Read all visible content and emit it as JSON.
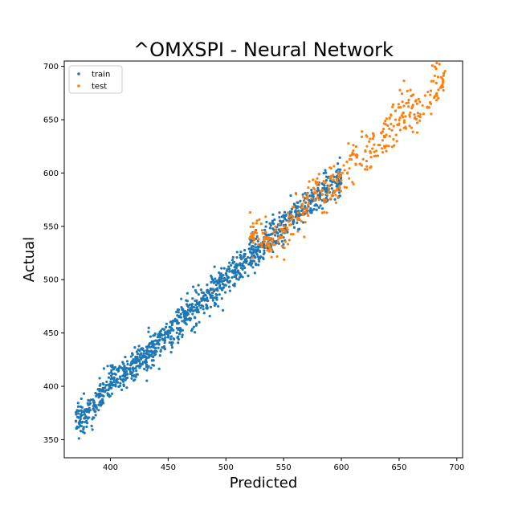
{
  "chart_data": {
    "type": "scatter",
    "title": "^OMXSPI - Neural Network",
    "xlabel": "Predicted",
    "ylabel": "Actual",
    "xlim": [
      360,
      705
    ],
    "ylim": [
      333,
      705
    ],
    "xticks": [
      400,
      450,
      500,
      550,
      600,
      650,
      700
    ],
    "yticks": [
      350,
      400,
      450,
      500,
      550,
      600,
      650,
      700
    ],
    "grid": false,
    "legend_position": "top-left",
    "series": [
      {
        "name": "train",
        "color": "#1f77b4",
        "anchors": [
          [
            370,
            368
          ],
          [
            380,
            375
          ],
          [
            390,
            388
          ],
          [
            400,
            402
          ],
          [
            410,
            410
          ],
          [
            420,
            420
          ],
          [
            430,
            430
          ],
          [
            440,
            440
          ],
          [
            450,
            450
          ],
          [
            460,
            460
          ],
          [
            470,
            470
          ],
          [
            480,
            480
          ],
          [
            490,
            490
          ],
          [
            500,
            500
          ],
          [
            510,
            510
          ],
          [
            520,
            520
          ],
          [
            530,
            530
          ],
          [
            540,
            540
          ],
          [
            550,
            550
          ],
          [
            560,
            560
          ],
          [
            570,
            570
          ],
          [
            580,
            580
          ],
          [
            590,
            588
          ],
          [
            600,
            598
          ]
        ],
        "count": 1200,
        "spread": 8
      },
      {
        "name": "test",
        "color": "#ff7f0e",
        "anchors": [
          [
            520,
            545
          ],
          [
            530,
            540
          ],
          [
            540,
            535
          ],
          [
            550,
            545
          ],
          [
            560,
            560
          ],
          [
            570,
            570
          ],
          [
            580,
            580
          ],
          [
            590,
            590
          ],
          [
            600,
            595
          ],
          [
            610,
            612
          ],
          [
            620,
            618
          ],
          [
            630,
            625
          ],
          [
            640,
            640
          ],
          [
            650,
            655
          ],
          [
            660,
            660
          ],
          [
            670,
            660
          ],
          [
            680,
            680
          ],
          [
            690,
            688
          ]
        ],
        "count": 400,
        "spread": 10
      }
    ]
  }
}
